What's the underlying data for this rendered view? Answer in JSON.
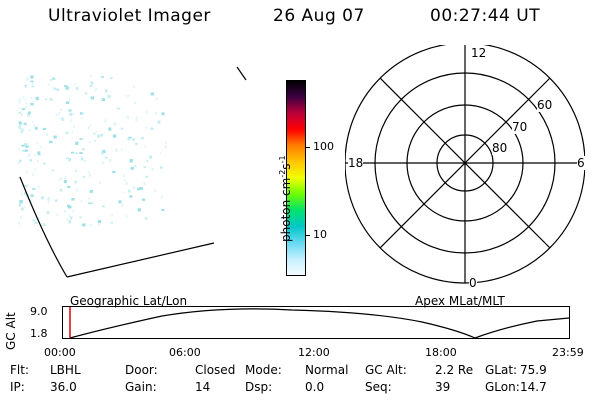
{
  "header": {
    "instrument": "Ultraviolet Imager",
    "date": "26 Aug 07",
    "time": "00:27:44 UT"
  },
  "colorbar": {
    "unit_text": "photon cm",
    "unit_exp1": "-2",
    "unit_s": "s",
    "unit_exp2": "-1",
    "ticks": [
      "100",
      "10"
    ],
    "colors": [
      "#000000",
      "#3a0040",
      "#c0003a",
      "#ff0000",
      "#ff7a00",
      "#ffc800",
      "#f0ff00",
      "#70ff00",
      "#00e070",
      "#00c8c8",
      "#60d8f0",
      "#c8f0ff",
      "#f4fbff"
    ]
  },
  "polar": {
    "mlt": {
      "top": "12",
      "left": "18",
      "right": "6",
      "bottom": "0"
    },
    "lat": [
      "60",
      "70",
      "80"
    ]
  },
  "timeline": {
    "left_title": "Geographic Lat/Lon",
    "right_title": "Apex MLat/MLT",
    "axis_label": "GC Alt",
    "y_ticks": [
      "9.0",
      "1.8"
    ],
    "x_ticks": [
      "00:00",
      "06:00",
      "12:00",
      "18:00",
      "23:59"
    ]
  },
  "status": [
    {
      "label": "Flt:",
      "value": "LBHL"
    },
    {
      "label": "Door:",
      "value": "Closed"
    },
    {
      "label": "Mode:",
      "value": "Normal"
    },
    {
      "label": "GC Alt:",
      "value": "2.2 Re"
    },
    {
      "label": "GLat:",
      "value": "75.9"
    },
    {
      "label": "IP:",
      "value": "36.0"
    },
    {
      "label": "Gain:",
      "value": "14"
    },
    {
      "label": "Dsp:",
      "value": "0.0"
    },
    {
      "label": "Seq:",
      "value": "39"
    },
    {
      "label": "GLon:",
      "value": "14.7"
    }
  ]
}
